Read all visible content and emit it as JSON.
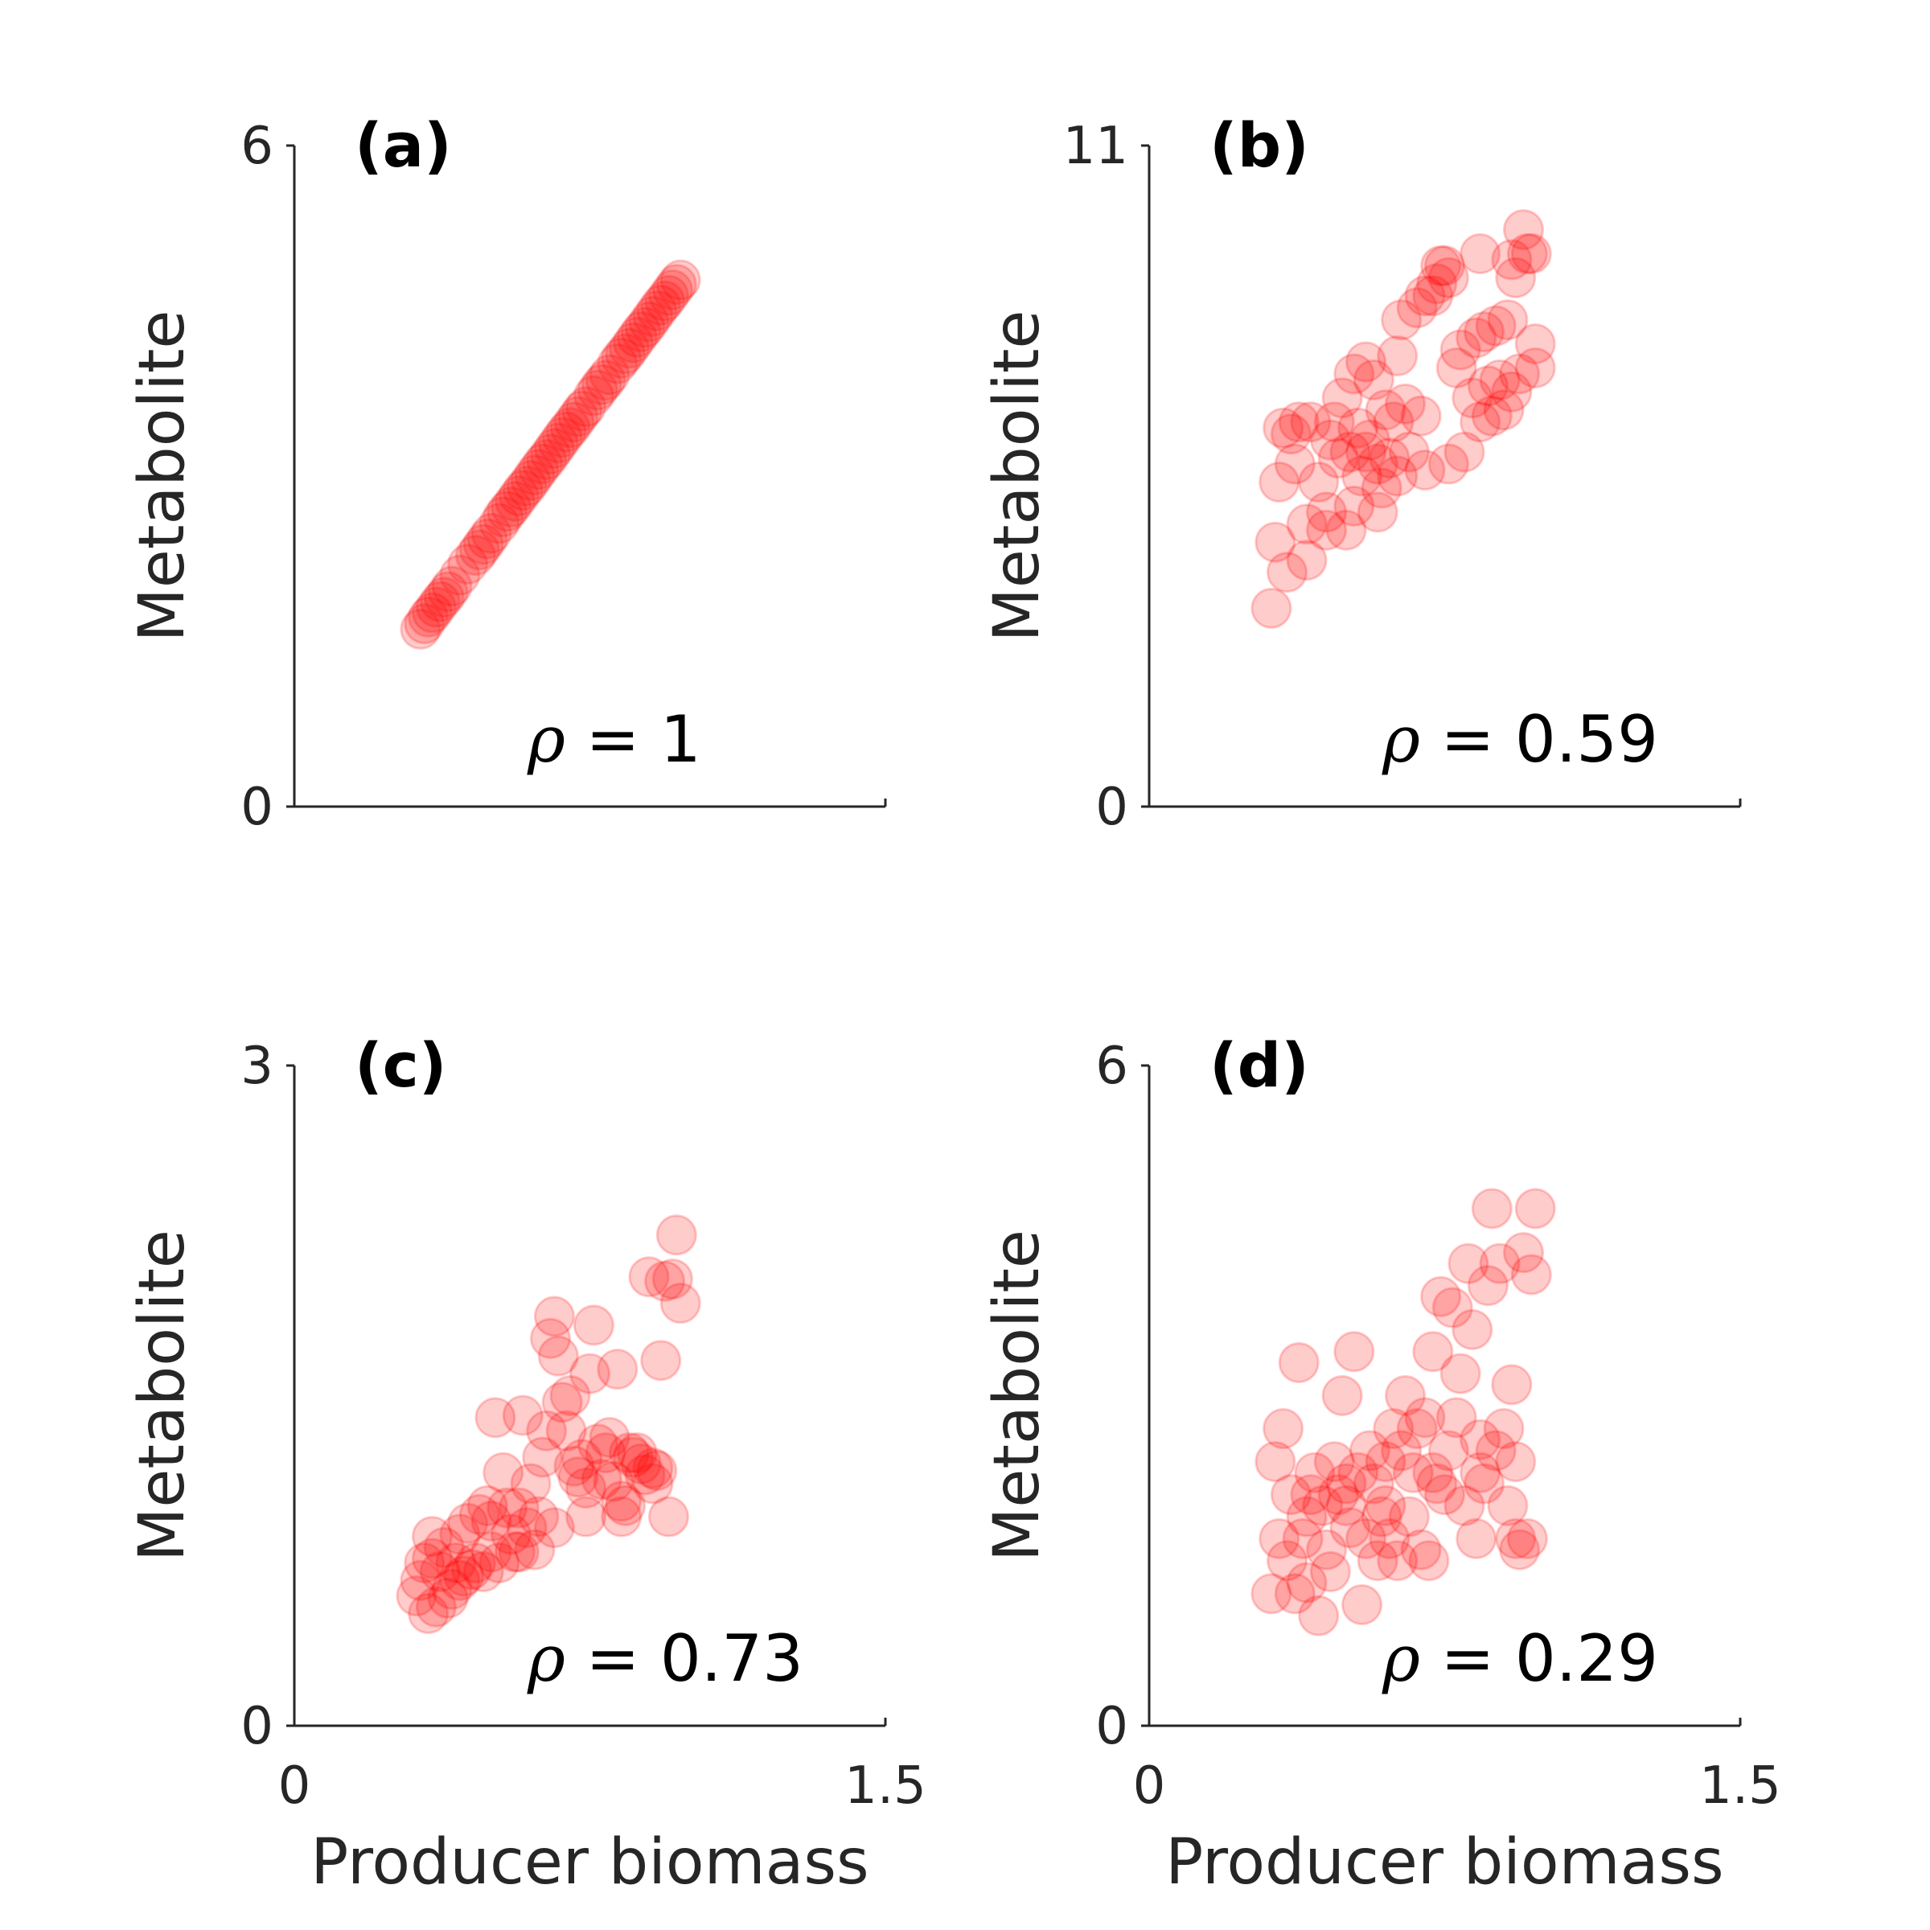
{
  "chart_data": [
    {
      "type": "scatter",
      "panel": "(a)",
      "annotation": "ρ = 1",
      "rho_symbol": "ρ",
      "rho_text": " = 1",
      "xlabel": "",
      "ylabel": "Metabolite",
      "xlim": [
        0,
        1.5
      ],
      "ylim": [
        0,
        6
      ],
      "xticks": [],
      "yticks": [
        "0",
        "6"
      ],
      "marker_color": "#ff0000",
      "marker_alpha": 0.2,
      "x": [
        0.32,
        0.33,
        0.34,
        0.35,
        0.36,
        0.37,
        0.38,
        0.39,
        0.4,
        0.42,
        0.44,
        0.46,
        0.47,
        0.48,
        0.49,
        0.5,
        0.52,
        0.53,
        0.54,
        0.55,
        0.56,
        0.57,
        0.58,
        0.59,
        0.6,
        0.61,
        0.62,
        0.63,
        0.64,
        0.65,
        0.66,
        0.67,
        0.68,
        0.69,
        0.7,
        0.71,
        0.72,
        0.73,
        0.74,
        0.76,
        0.77,
        0.78,
        0.79,
        0.8,
        0.82,
        0.83,
        0.84,
        0.85,
        0.86,
        0.87,
        0.88,
        0.89,
        0.9,
        0.91,
        0.92,
        0.93,
        0.94,
        0.95,
        0.96,
        0.97,
        0.98
      ],
      "y": [
        1.61,
        1.66,
        1.72,
        1.76,
        1.81,
        1.86,
        1.9,
        1.95,
        2.0,
        2.1,
        2.2,
        2.28,
        2.33,
        2.38,
        2.43,
        2.48,
        2.57,
        2.63,
        2.68,
        2.72,
        2.77,
        2.82,
        2.87,
        2.91,
        2.96,
        3.01,
        3.06,
        3.11,
        3.15,
        3.2,
        3.25,
        3.3,
        3.35,
        3.4,
        3.44,
        3.49,
        3.54,
        3.59,
        3.63,
        3.73,
        3.78,
        3.83,
        3.87,
        3.92,
        4.02,
        4.07,
        4.11,
        4.16,
        4.21,
        4.26,
        4.31,
        4.35,
        4.4,
        4.45,
        4.5,
        4.55,
        4.59,
        4.64,
        4.69,
        4.74,
        4.78
      ]
    },
    {
      "type": "scatter",
      "panel": "(b)",
      "annotation": "ρ = 0.59",
      "rho_symbol": "ρ",
      "rho_text": " = 0.59",
      "xlabel": "",
      "ylabel": "Metabolite",
      "xlim": [
        0,
        1.5
      ],
      "ylim": [
        0,
        11
      ],
      "xticks": [],
      "yticks": [
        "0",
        "11"
      ],
      "marker_color": "#ff0000",
      "marker_alpha": 0.2,
      "x": [
        0.31,
        0.32,
        0.33,
        0.34,
        0.35,
        0.36,
        0.37,
        0.38,
        0.4,
        0.41,
        0.43,
        0.45,
        0.46,
        0.47,
        0.48,
        0.49,
        0.5,
        0.51,
        0.52,
        0.53,
        0.54,
        0.55,
        0.55,
        0.56,
        0.57,
        0.58,
        0.59,
        0.6,
        0.61,
        0.62,
        0.63,
        0.64,
        0.65,
        0.66,
        0.68,
        0.69,
        0.7,
        0.72,
        0.73,
        0.74,
        0.75,
        0.76,
        0.78,
        0.79,
        0.8,
        0.82,
        0.83,
        0.84,
        0.85,
        0.86,
        0.87,
        0.88,
        0.89,
        0.9,
        0.91,
        0.92,
        0.93,
        0.94,
        0.95,
        0.96,
        0.97,
        0.98,
        0.4,
        0.45,
        0.52,
        0.58,
        0.63,
        0.7,
        0.76,
        0.84,
        0.92,
        0.98
      ],
      "y": [
        3.3,
        4.4,
        5.4,
        6.3,
        3.9,
        6.2,
        5.7,
        6.4,
        4.7,
        6.4,
        5.4,
        4.6,
        6.1,
        6.4,
        5.8,
        6.8,
        4.6,
        5.9,
        7.2,
        6.3,
        5.5,
        7.4,
        5.9,
        6.1,
        7.1,
        5.7,
        5.3,
        6.6,
        5.8,
        6.4,
        7.5,
        8.1,
        6.7,
        5.9,
        8.3,
        6.5,
        8.5,
        8.5,
        8.7,
        9.0,
        9.0,
        8.8,
        7.3,
        7.6,
        5.9,
        6.8,
        7.8,
        9.2,
        7.9,
        7.0,
        6.5,
        8.0,
        7.1,
        6.6,
        8.1,
        9.1,
        8.8,
        7.2,
        9.6,
        9.2,
        9.2,
        7.7,
        4.1,
        4.9,
        5.0,
        4.9,
        5.5,
        5.6,
        5.7,
        6.4,
        6.9,
        7.3
      ]
    },
    {
      "type": "scatter",
      "panel": "(c)",
      "annotation": "ρ = 0.73",
      "rho_symbol": "ρ",
      "rho_text": " = 0.73",
      "xlabel": "Producer biomass",
      "ylabel": "Metabolite",
      "xlim": [
        0,
        1.5
      ],
      "ylim": [
        0,
        3
      ],
      "xticks": [
        "0",
        "1.5"
      ],
      "yticks": [
        "0",
        "3"
      ],
      "marker_color": "#ff0000",
      "marker_alpha": 0.2,
      "x": [
        0.31,
        0.32,
        0.33,
        0.34,
        0.35,
        0.36,
        0.37,
        0.38,
        0.39,
        0.4,
        0.41,
        0.42,
        0.43,
        0.44,
        0.45,
        0.46,
        0.47,
        0.48,
        0.49,
        0.5,
        0.51,
        0.52,
        0.53,
        0.54,
        0.55,
        0.56,
        0.57,
        0.58,
        0.59,
        0.6,
        0.61,
        0.62,
        0.63,
        0.64,
        0.65,
        0.66,
        0.67,
        0.68,
        0.69,
        0.7,
        0.71,
        0.72,
        0.73,
        0.74,
        0.75,
        0.76,
        0.77,
        0.78,
        0.79,
        0.8,
        0.81,
        0.82,
        0.83,
        0.84,
        0.85,
        0.86,
        0.87,
        0.88,
        0.89,
        0.9,
        0.91,
        0.92,
        0.93,
        0.94,
        0.95,
        0.96,
        0.97,
        0.98,
        0.35,
        0.42,
        0.5,
        0.57,
        0.66,
        0.74,
        0.83,
        0.91
      ],
      "y": [
        0.59,
        0.66,
        0.74,
        0.51,
        0.86,
        0.54,
        0.7,
        0.81,
        0.58,
        0.62,
        0.74,
        0.87,
        0.68,
        0.92,
        0.71,
        0.74,
        0.96,
        0.7,
        1.0,
        0.93,
        1.4,
        0.74,
        1.15,
        0.99,
        0.87,
        0.79,
        0.99,
        1.41,
        0.9,
        1.1,
        0.8,
        0.95,
        1.22,
        1.34,
        1.76,
        1.86,
        1.68,
        1.47,
        1.34,
        1.5,
        1.18,
        1.13,
        1.21,
        1.08,
        1.6,
        1.82,
        1.28,
        1.12,
        1.24,
        1.31,
        1.11,
        1.62,
        0.95,
        1.0,
        1.24,
        1.22,
        1.24,
        1.19,
        1.14,
        2.04,
        1.17,
        1.16,
        1.66,
        2.02,
        0.95,
        2.03,
        2.23,
        1.92,
        0.76,
        0.66,
        0.79,
        0.79,
        0.9,
        0.95,
        1.02,
        1.1
      ]
    },
    {
      "type": "scatter",
      "panel": "(d)",
      "annotation": "ρ = 0.29",
      "rho_symbol": "ρ",
      "rho_text": " = 0.29",
      "xlabel": "Producer biomass",
      "ylabel": "Metabolite",
      "xlim": [
        0,
        1.5
      ],
      "ylim": [
        0,
        6
      ],
      "xticks": [
        "0",
        "1.5"
      ],
      "yticks": [
        "0",
        "6"
      ],
      "marker_color": "#ff0000",
      "marker_alpha": 0.2,
      "x": [
        0.31,
        0.32,
        0.33,
        0.34,
        0.35,
        0.36,
        0.37,
        0.38,
        0.39,
        0.4,
        0.41,
        0.42,
        0.43,
        0.44,
        0.45,
        0.46,
        0.47,
        0.48,
        0.49,
        0.5,
        0.51,
        0.52,
        0.53,
        0.54,
        0.55,
        0.56,
        0.57,
        0.58,
        0.59,
        0.6,
        0.61,
        0.62,
        0.63,
        0.64,
        0.65,
        0.66,
        0.67,
        0.68,
        0.69,
        0.7,
        0.71,
        0.72,
        0.73,
        0.74,
        0.75,
        0.76,
        0.77,
        0.78,
        0.79,
        0.8,
        0.81,
        0.82,
        0.83,
        0.84,
        0.85,
        0.86,
        0.87,
        0.88,
        0.89,
        0.9,
        0.91,
        0.92,
        0.93,
        0.94,
        0.95,
        0.96,
        0.97,
        0.98,
        0.4,
        0.5,
        0.6,
        0.72,
        0.84,
        0.93
      ],
      "y": [
        1.2,
        2.4,
        1.7,
        2.7,
        1.5,
        2.1,
        1.2,
        3.3,
        1.7,
        1.3,
        2.1,
        2.3,
        1.0,
        2.0,
        1.6,
        1.4,
        2.4,
        2.1,
        3.0,
        2.2,
        1.8,
        3.4,
        2.3,
        1.1,
        1.7,
        2.5,
        2.2,
        1.5,
        1.9,
        2.4,
        1.7,
        2.7,
        1.5,
        2.5,
        3.0,
        1.9,
        2.3,
        2.7,
        1.6,
        2.8,
        1.5,
        3.4,
        2.2,
        3.9,
        2.1,
        2.5,
        3.8,
        2.8,
        3.2,
        2.0,
        4.2,
        3.6,
        1.7,
        2.3,
        2.2,
        4.0,
        4.7,
        2.5,
        4.2,
        2.7,
        2.0,
        3.1,
        2.4,
        1.6,
        4.3,
        1.7,
        4.1,
        4.7,
        1.9,
        2.0,
        2.0,
        2.3,
        2.6,
        1.7
      ]
    }
  ]
}
